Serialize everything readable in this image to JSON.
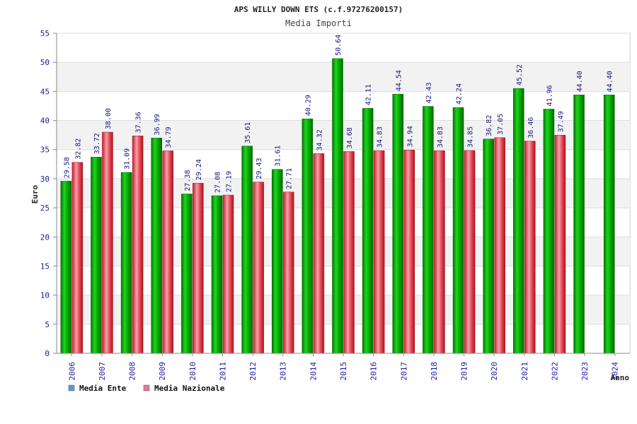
{
  "chart_data": {
    "type": "bar",
    "title": "APS WILLY DOWN ETS (c.f.97276200157)",
    "subtitle": "Media Importi",
    "xlabel": "Anno",
    "ylabel": "Euro",
    "ylim": [
      0,
      55
    ],
    "yticks": [
      "0",
      "5",
      "10",
      "15",
      "20",
      "25",
      "30",
      "35",
      "40",
      "45",
      "50",
      "55"
    ],
    "categories": [
      "2006",
      "2007",
      "2008",
      "2009",
      "2010",
      "2011",
      "2012",
      "2013",
      "2014",
      "2015",
      "2016",
      "2017",
      "2018",
      "2019",
      "2020",
      "2021",
      "2022",
      "2023",
      "2024"
    ],
    "series": [
      {
        "name": "Media Ente",
        "color": "#00b400",
        "values": [
          29.58,
          33.72,
          31.09,
          36.99,
          27.38,
          27.08,
          35.61,
          31.61,
          40.29,
          50.64,
          42.11,
          44.54,
          42.43,
          42.24,
          36.82,
          45.52,
          41.96,
          44.4,
          44.4
        ],
        "labels": [
          "29.58",
          "33.72",
          "31.09",
          "36.99",
          "27.38",
          "27.08",
          "35.61",
          "31.61",
          "40.29",
          "50.64",
          "42.11",
          "44.54",
          "42.43",
          "42.24",
          "36.82",
          "45.52",
          "41.96",
          "44.40",
          "44.40"
        ]
      },
      {
        "name": "Media Nazionale",
        "color": "#e0303c",
        "values": [
          32.82,
          38.0,
          37.36,
          34.79,
          29.24,
          27.19,
          29.43,
          27.71,
          34.32,
          34.68,
          34.83,
          34.94,
          34.83,
          34.85,
          37.05,
          36.46,
          37.49,
          null,
          null
        ],
        "labels": [
          "32.82",
          "38.00",
          "37.36",
          "34.79",
          "29.24",
          "27.19",
          "29.43",
          "27.71",
          "34.32",
          "34.68",
          "34.83",
          "34.94",
          "34.83",
          "34.85",
          "37.05",
          "36.46",
          "37.49",
          null,
          null
        ]
      }
    ],
    "legend": [
      {
        "label": "Media Ente",
        "color": "#5b9bd5"
      },
      {
        "label": "Media Nazionale",
        "color": "#e07aa0"
      }
    ],
    "grid": true,
    "legend_position": "bottom-left"
  }
}
